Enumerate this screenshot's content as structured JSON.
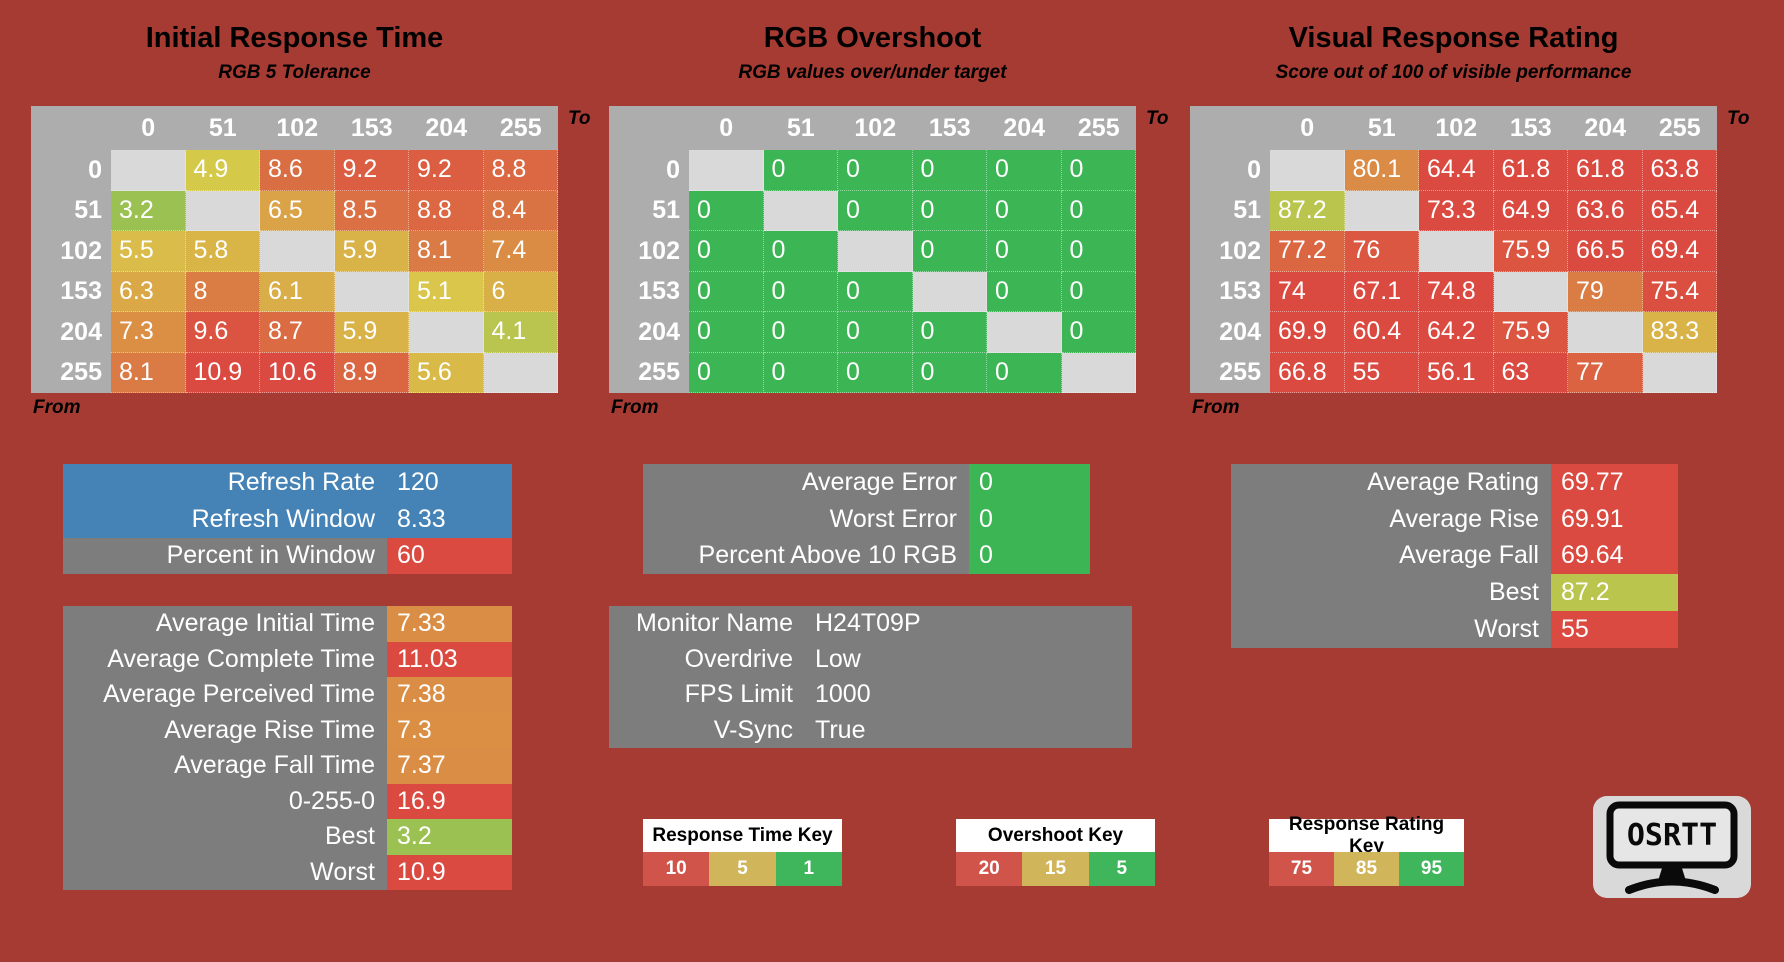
{
  "colors": {
    "background": "#A53B33",
    "table_header_bg": "#ADADAD",
    "diagonal_bg": "#D9D9D9",
    "stat_box_grey": "#7D7D7D",
    "refresh_box_blue": "#4583B6",
    "key_red": "#D1544B",
    "key_gold": "#D1B55A",
    "key_green": "#3FB65C",
    "cell_red": "#DB4A40",
    "cell_yellow": "#D9C94A",
    "cell_green_time": "#4CB85C",
    "cell_green_overshoot": "#3CB554"
  },
  "scales": {
    "time": {
      "stops": [
        [
          1,
          "#4CB85C"
        ],
        [
          5,
          "#D9C94A"
        ],
        [
          10,
          "#DB4A40"
        ]
      ]
    },
    "overshoot": {
      "stops": [
        [
          5,
          "#3CB554"
        ],
        [
          15,
          "#D1B55A"
        ],
        [
          20,
          "#DB4A40"
        ]
      ]
    },
    "rating": {
      "stops": [
        [
          75,
          "#DB4A40"
        ],
        [
          85,
          "#D9C94A"
        ],
        [
          95,
          "#4CB85C"
        ]
      ]
    }
  },
  "chart_data": [
    {
      "type": "heatmap",
      "title": "Initial Response Time",
      "subtitle": "RGB 5 Tolerance",
      "x_axis_label": "To",
      "y_axis_label": "From",
      "columns": [
        "0",
        "51",
        "102",
        "153",
        "204",
        "255"
      ],
      "rows": [
        "0",
        "51",
        "102",
        "153",
        "204",
        "255"
      ],
      "scale": "time",
      "values": [
        [
          null,
          4.9,
          8.6,
          9.2,
          9.2,
          8.8
        ],
        [
          3.2,
          null,
          6.5,
          8.5,
          8.8,
          8.4
        ],
        [
          5.5,
          5.8,
          null,
          5.9,
          8.1,
          7.4
        ],
        [
          6.3,
          8,
          6.1,
          null,
          5.1,
          6
        ],
        [
          7.3,
          9.6,
          8.7,
          5.9,
          null,
          4.1
        ],
        [
          8.1,
          10.9,
          10.6,
          8.9,
          5.6,
          null
        ]
      ]
    },
    {
      "type": "heatmap",
      "title": "RGB Overshoot",
      "subtitle": "RGB values over/under target",
      "x_axis_label": "To",
      "y_axis_label": "From",
      "columns": [
        "0",
        "51",
        "102",
        "153",
        "204",
        "255"
      ],
      "rows": [
        "0",
        "51",
        "102",
        "153",
        "204",
        "255"
      ],
      "scale": "overshoot",
      "values": [
        [
          null,
          0,
          0,
          0,
          0,
          0
        ],
        [
          0,
          null,
          0,
          0,
          0,
          0
        ],
        [
          0,
          0,
          null,
          0,
          0,
          0
        ],
        [
          0,
          0,
          0,
          null,
          0,
          0
        ],
        [
          0,
          0,
          0,
          0,
          null,
          0
        ],
        [
          0,
          0,
          0,
          0,
          0,
          null
        ]
      ]
    },
    {
      "type": "heatmap",
      "title": "Visual Response Rating",
      "subtitle": "Score out of 100 of visible performance",
      "x_axis_label": "To",
      "y_axis_label": "From",
      "columns": [
        "0",
        "51",
        "102",
        "153",
        "204",
        "255"
      ],
      "rows": [
        "0",
        "51",
        "102",
        "153",
        "204",
        "255"
      ],
      "scale": "rating",
      "values": [
        [
          null,
          80.1,
          64.4,
          61.8,
          61.8,
          63.8
        ],
        [
          87.2,
          null,
          73.3,
          64.9,
          63.6,
          65.4
        ],
        [
          77.2,
          76,
          null,
          75.9,
          66.5,
          69.4
        ],
        [
          74,
          67.1,
          74.8,
          null,
          79,
          75.4
        ],
        [
          69.9,
          60.4,
          64.2,
          75.9,
          null,
          83.3
        ],
        [
          66.8,
          55,
          56.1,
          63,
          77,
          null
        ]
      ]
    }
  ],
  "stat_boxes": [
    {
      "id": "refresh-stats",
      "rows": [
        {
          "label": "Refresh Rate",
          "value": "120",
          "row_bg": "blue"
        },
        {
          "label": "Refresh Window",
          "value": "8.33",
          "row_bg": "blue"
        },
        {
          "label": "Percent in Window",
          "value": "60",
          "value_scale": "rating"
        }
      ]
    },
    {
      "id": "error-stats",
      "rows": [
        {
          "label": "Average Error",
          "value": "0",
          "value_scale": "overshoot"
        },
        {
          "label": "Worst Error",
          "value": "0",
          "value_scale": "overshoot"
        },
        {
          "label": "Percent Above 10 RGB",
          "value": "0",
          "value_scale": "overshoot"
        }
      ]
    },
    {
      "id": "rating-stats",
      "rows": [
        {
          "label": "Average Rating",
          "value": "69.77",
          "value_scale": "rating"
        },
        {
          "label": "Average Rise",
          "value": "69.91",
          "value_scale": "rating"
        },
        {
          "label": "Average Fall",
          "value": "69.64",
          "value_scale": "rating"
        },
        {
          "label": "Best",
          "value": "87.2",
          "value_scale": "rating"
        },
        {
          "label": "Worst",
          "value": "55",
          "value_scale": "rating"
        }
      ]
    },
    {
      "id": "time-stats",
      "rows": [
        {
          "label": "Average Initial Time",
          "value": "7.33",
          "value_scale": "time"
        },
        {
          "label": "Average Complete Time",
          "value": "11.03",
          "value_scale": "time"
        },
        {
          "label": "Average Perceived Time",
          "value": "7.38",
          "value_scale": "time"
        },
        {
          "label": "Average Rise Time",
          "value": "7.3",
          "value_scale": "time"
        },
        {
          "label": "Average Fall Time",
          "value": "7.37",
          "value_scale": "time"
        },
        {
          "label": "0-255-0",
          "value": "16.9",
          "value_scale": "time"
        },
        {
          "label": "Best",
          "value": "3.2",
          "value_scale": "time"
        },
        {
          "label": "Worst",
          "value": "10.9",
          "value_scale": "time"
        }
      ]
    },
    {
      "id": "monitor-info",
      "rows": [
        {
          "label": "Monitor Name",
          "value": "H24T09P"
        },
        {
          "label": "Overdrive",
          "value": "Low"
        },
        {
          "label": "FPS Limit",
          "value": "1000"
        },
        {
          "label": "V-Sync",
          "value": "True"
        }
      ]
    }
  ],
  "keys": [
    {
      "title": "Response Time Key",
      "entries": [
        {
          "label": "10",
          "color": "#D1544B"
        },
        {
          "label": "5",
          "color": "#D1B55A"
        },
        {
          "label": "1",
          "color": "#3FB65C"
        }
      ]
    },
    {
      "title": "Overshoot Key",
      "entries": [
        {
          "label": "20",
          "color": "#D1544B"
        },
        {
          "label": "15",
          "color": "#D1B55A"
        },
        {
          "label": "5",
          "color": "#3FB65C"
        }
      ]
    },
    {
      "title": "Response Rating Key",
      "entries": [
        {
          "label": "75",
          "color": "#D1544B"
        },
        {
          "label": "85",
          "color": "#D1B55A"
        },
        {
          "label": "95",
          "color": "#3FB65C"
        }
      ]
    }
  ],
  "logo": {
    "text": "OSRTT"
  }
}
